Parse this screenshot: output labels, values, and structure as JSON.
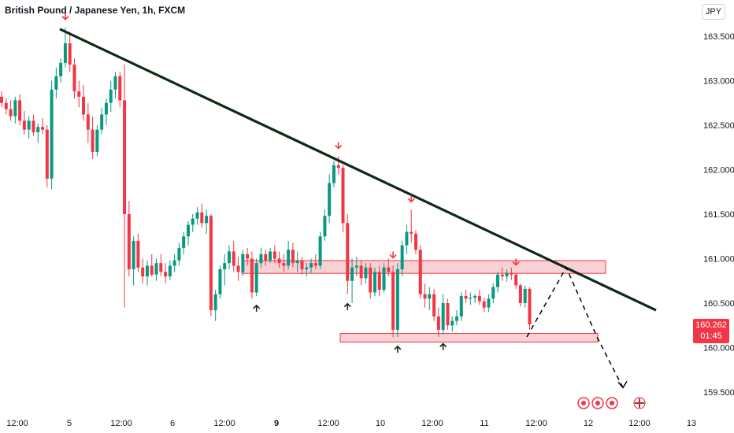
{
  "header": {
    "title": "British Pound / Japanese Yen, 1h, FXCM",
    "currency_badge": "JPY"
  },
  "last_price": {
    "value": "160.262",
    "countdown": "01:45"
  },
  "colors": {
    "bull": "#089981",
    "bear": "#f23645",
    "trendline": "#0d2a15",
    "zone_fill": "#f7c9cd",
    "zone_border": "#f23645",
    "up_arrow": "#0d2a15",
    "down_arrow": "#f23645"
  },
  "chart_data": {
    "type": "candlestick",
    "symbol": "GBPJPY",
    "interval": "1h",
    "y_ticks": [
      "163.500",
      "163.000",
      "162.500",
      "162.000",
      "161.500",
      "161.000",
      "160.500",
      "160.000",
      "159.500"
    ],
    "ylim": [
      159.4,
      163.85
    ],
    "x_ticks": [
      {
        "label": "12:00",
        "bold": false
      },
      {
        "label": "5",
        "bold": false
      },
      {
        "label": "12:00",
        "bold": false
      },
      {
        "label": "6",
        "bold": false
      },
      {
        "label": "12:00",
        "bold": false
      },
      {
        "label": "9",
        "bold": true
      },
      {
        "label": "12:00",
        "bold": false
      },
      {
        "label": "10",
        "bold": false
      },
      {
        "label": "12:00",
        "bold": false
      },
      {
        "label": "11",
        "bold": false
      },
      {
        "label": "12:00",
        "bold": false
      },
      {
        "label": "12",
        "bold": false
      },
      {
        "label": "12:00",
        "bold": false
      },
      {
        "label": "13",
        "bold": false
      }
    ],
    "trendline": {
      "from_price": 163.58,
      "to_price": 160.42
    },
    "resistance_zone": {
      "top": 160.96,
      "bottom": 160.87
    },
    "support_zone": {
      "top": 160.15,
      "bottom": 160.08
    },
    "projection_path": [
      160.12,
      160.9,
      160.12,
      159.55
    ],
    "candles": [
      [
        162.82,
        162.88,
        162.7,
        162.75
      ],
      [
        162.75,
        162.8,
        162.62,
        162.68
      ],
      [
        162.68,
        162.78,
        162.55,
        162.6
      ],
      [
        162.6,
        162.82,
        162.52,
        162.78
      ],
      [
        162.78,
        162.85,
        162.5,
        162.55
      ],
      [
        162.55,
        162.66,
        162.4,
        162.45
      ],
      [
        162.45,
        162.6,
        162.35,
        162.55
      ],
      [
        162.55,
        162.62,
        162.38,
        162.42
      ],
      [
        162.42,
        162.52,
        162.3,
        162.48
      ],
      [
        162.48,
        162.58,
        162.4,
        162.45
      ],
      [
        162.45,
        162.5,
        161.8,
        161.9
      ],
      [
        161.9,
        163.0,
        161.78,
        162.9
      ],
      [
        162.9,
        163.15,
        162.8,
        163.05
      ],
      [
        163.05,
        163.25,
        162.98,
        163.2
      ],
      [
        163.2,
        163.6,
        163.15,
        163.42
      ],
      [
        163.42,
        163.55,
        163.1,
        163.18
      ],
      [
        163.18,
        163.25,
        162.8,
        162.88
      ],
      [
        162.88,
        163.0,
        162.7,
        162.82
      ],
      [
        162.82,
        162.95,
        162.55,
        162.62
      ],
      [
        162.62,
        162.75,
        162.3,
        162.45
      ],
      [
        162.45,
        162.6,
        162.12,
        162.2
      ],
      [
        162.2,
        162.5,
        162.15,
        162.45
      ],
      [
        162.45,
        162.7,
        162.4,
        162.62
      ],
      [
        162.62,
        162.8,
        162.5,
        162.75
      ],
      [
        162.75,
        163.0,
        162.65,
        162.9
      ],
      [
        162.9,
        163.1,
        162.8,
        163.05
      ],
      [
        163.05,
        163.1,
        162.7,
        162.78
      ],
      [
        162.78,
        163.18,
        160.45,
        161.5
      ],
      [
        161.5,
        161.65,
        160.8,
        160.88
      ],
      [
        160.88,
        161.25,
        160.7,
        161.2
      ],
      [
        161.2,
        161.28,
        160.85,
        160.9
      ],
      [
        160.9,
        161.0,
        160.72,
        160.8
      ],
      [
        160.8,
        160.98,
        160.7,
        160.92
      ],
      [
        160.92,
        161.05,
        160.8,
        160.82
      ],
      [
        160.82,
        161.0,
        160.75,
        160.95
      ],
      [
        160.95,
        161.05,
        160.8,
        160.85
      ],
      [
        160.85,
        160.95,
        160.72,
        160.8
      ],
      [
        160.8,
        160.98,
        160.76,
        160.92
      ],
      [
        160.92,
        161.05,
        160.85,
        160.98
      ],
      [
        160.98,
        161.18,
        160.92,
        161.12
      ],
      [
        161.12,
        161.3,
        161.05,
        161.25
      ],
      [
        161.25,
        161.42,
        161.15,
        161.38
      ],
      [
        161.38,
        161.5,
        161.3,
        161.45
      ],
      [
        161.45,
        161.58,
        161.38,
        161.52
      ],
      [
        161.52,
        161.62,
        161.35,
        161.4
      ],
      [
        161.4,
        161.55,
        161.28,
        161.48
      ],
      [
        161.48,
        161.5,
        160.35,
        160.42
      ],
      [
        160.42,
        160.65,
        160.3,
        160.6
      ],
      [
        160.6,
        160.92,
        160.55,
        160.88
      ],
      [
        160.88,
        161.05,
        160.7,
        160.95
      ],
      [
        160.95,
        161.15,
        160.88,
        161.08
      ],
      [
        161.08,
        161.2,
        160.85,
        160.92
      ],
      [
        160.92,
        161.02,
        160.75,
        160.85
      ],
      [
        160.85,
        161.1,
        160.8,
        161.05
      ],
      [
        161.05,
        161.12,
        160.92,
        161.0
      ],
      [
        161.0,
        161.08,
        160.55,
        160.62
      ],
      [
        160.62,
        161.0,
        160.58,
        160.95
      ],
      [
        160.95,
        161.12,
        160.9,
        161.05
      ],
      [
        161.05,
        161.1,
        160.92,
        160.98
      ],
      [
        160.98,
        161.12,
        160.95,
        161.08
      ],
      [
        161.08,
        161.15,
        160.95,
        161.0
      ],
      [
        161.0,
        161.08,
        160.9,
        160.95
      ],
      [
        160.95,
        161.05,
        160.85,
        160.92
      ],
      [
        160.92,
        161.2,
        160.88,
        161.1
      ],
      [
        161.1,
        161.18,
        160.9,
        160.95
      ],
      [
        160.95,
        161.08,
        160.85,
        160.98
      ],
      [
        160.98,
        161.02,
        160.82,
        160.88
      ],
      [
        160.88,
        160.95,
        160.8,
        160.9
      ],
      [
        160.9,
        161.0,
        160.84,
        160.95
      ],
      [
        160.95,
        161.05,
        160.88,
        160.92
      ],
      [
        160.92,
        161.3,
        160.88,
        161.25
      ],
      [
        161.25,
        161.55,
        161.2,
        161.48
      ],
      [
        161.48,
        161.95,
        161.4,
        161.85
      ],
      [
        161.85,
        162.1,
        161.8,
        162.05
      ],
      [
        162.05,
        162.15,
        161.95,
        162.02
      ],
      [
        162.02,
        162.05,
        161.3,
        161.4
      ],
      [
        161.4,
        161.5,
        160.6,
        160.75
      ],
      [
        160.75,
        161.0,
        160.5,
        160.9
      ],
      [
        160.9,
        161.02,
        160.8,
        160.92
      ],
      [
        160.92,
        160.98,
        160.7,
        160.78
      ],
      [
        160.78,
        160.95,
        160.72,
        160.9
      ],
      [
        160.9,
        160.95,
        160.55,
        160.62
      ],
      [
        160.62,
        160.9,
        160.58,
        160.85
      ],
      [
        160.85,
        160.92,
        160.58,
        160.65
      ],
      [
        160.65,
        160.95,
        160.62,
        160.9
      ],
      [
        160.9,
        161.0,
        160.8,
        160.85
      ],
      [
        160.85,
        160.92,
        160.12,
        160.2
      ],
      [
        160.2,
        160.95,
        160.12,
        160.88
      ],
      [
        160.88,
        161.2,
        160.8,
        161.15
      ],
      [
        161.15,
        161.38,
        161.05,
        161.3
      ],
      [
        161.3,
        161.55,
        161.18,
        161.28
      ],
      [
        161.28,
        161.32,
        161.05,
        161.1
      ],
      [
        161.1,
        161.15,
        160.55,
        160.6
      ],
      [
        160.6,
        160.72,
        160.45,
        160.55
      ],
      [
        160.55,
        160.68,
        160.42,
        160.6
      ],
      [
        160.6,
        160.66,
        160.3,
        160.35
      ],
      [
        160.35,
        160.45,
        160.12,
        160.2
      ],
      [
        160.2,
        160.6,
        160.15,
        160.5
      ],
      [
        160.5,
        160.55,
        160.2,
        160.25
      ],
      [
        160.25,
        160.35,
        160.18,
        160.3
      ],
      [
        160.3,
        160.42,
        160.25,
        160.35
      ],
      [
        160.35,
        160.62,
        160.3,
        160.58
      ],
      [
        160.58,
        160.65,
        160.5,
        160.55
      ],
      [
        160.55,
        160.62,
        160.48,
        160.56
      ],
      [
        160.56,
        160.6,
        160.5,
        160.58
      ],
      [
        160.58,
        160.65,
        160.48,
        160.52
      ],
      [
        160.52,
        160.56,
        160.4,
        160.45
      ],
      [
        160.45,
        160.6,
        160.4,
        160.55
      ],
      [
        160.55,
        160.72,
        160.5,
        160.68
      ],
      [
        160.68,
        160.85,
        160.62,
        160.82
      ],
      [
        160.82,
        160.9,
        160.75,
        160.8
      ],
      [
        160.8,
        160.88,
        160.74,
        160.84
      ],
      [
        160.84,
        160.9,
        160.76,
        160.82
      ],
      [
        160.82,
        160.84,
        160.66,
        160.7
      ],
      [
        160.7,
        160.72,
        160.46,
        160.5
      ],
      [
        160.5,
        160.7,
        160.45,
        160.66
      ],
      [
        160.66,
        160.68,
        160.2,
        160.26
      ]
    ],
    "annotations": {
      "down_arrows_at_candle": [
        14,
        74,
        86,
        90,
        113
      ],
      "up_arrows_at_candle": [
        56,
        76,
        87,
        97
      ]
    }
  }
}
